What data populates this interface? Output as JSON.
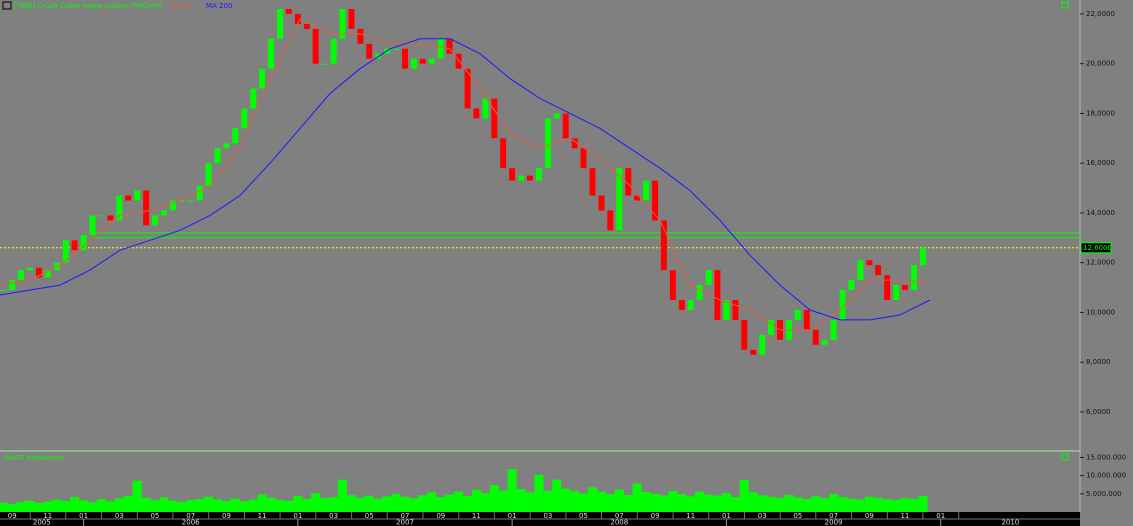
{
  "chart_data": [
    {
      "type": "candle",
      "title": "[TMG] Crush Cable Home Lesser (TMG=H)",
      "xlim": [
        2005.61,
        2010.65
      ],
      "ylim": [
        4.47,
        22.56
      ],
      "yticks": [
        {
          "value": 22,
          "label": "22,0000"
        },
        {
          "value": 20,
          "label": "20,0000"
        },
        {
          "value": 18,
          "label": "18,0000"
        },
        {
          "value": 16,
          "label": "16,0000"
        },
        {
          "value": 14,
          "label": "14,0000"
        },
        {
          "value": 12,
          "label": "12,0000"
        },
        {
          "value": 10,
          "label": "10,0000"
        },
        {
          "value": 8,
          "label": "8,0000"
        },
        {
          "value": 6,
          "label": "6,0000"
        }
      ],
      "hlines": [
        {
          "value": 13.2,
          "from": 2006.04,
          "color": "#00ff00"
        },
        {
          "value": 13.0,
          "from": 2006.04,
          "color": "#00ff00"
        }
      ],
      "price_line": {
        "value": 12.6,
        "label": "12,6000",
        "color": "#ffff00"
      },
      "series": [
        {
          "up_color": "#00ff00",
          "down_color": "#ff0000",
          "x": [
            2005.625,
            2005.667,
            2005.708,
            2005.75,
            2005.792,
            2005.833,
            2005.875,
            2005.917,
            2005.958,
            2006.0,
            2006.042,
            2006.083,
            2006.125,
            2006.167,
            2006.208,
            2006.25,
            2006.292,
            2006.333,
            2006.375,
            2006.417,
            2006.458,
            2006.5,
            2006.542,
            2006.583,
            2006.625,
            2006.667,
            2006.708,
            2006.75,
            2006.792,
            2006.833,
            2006.875,
            2006.917,
            2006.958,
            2007.0,
            2007.042,
            2007.083,
            2007.125,
            2007.167,
            2007.208,
            2007.25,
            2007.292,
            2007.333,
            2007.375,
            2007.417,
            2007.458,
            2007.5,
            2007.542,
            2007.583,
            2007.625,
            2007.667,
            2007.708,
            2007.75,
            2007.792,
            2007.833,
            2007.875,
            2007.917,
            2007.958,
            2008.0,
            2008.042,
            2008.083,
            2008.125,
            2008.167,
            2008.208,
            2008.25,
            2008.292,
            2008.333,
            2008.375,
            2008.417,
            2008.458,
            2008.5,
            2008.542,
            2008.583,
            2008.625,
            2008.667,
            2008.708,
            2008.75,
            2008.792,
            2008.833,
            2008.875,
            2008.917,
            2008.958,
            2009.0,
            2009.042,
            2009.083,
            2009.125,
            2009.167,
            2009.208,
            2009.25,
            2009.292,
            2009.333,
            2009.375,
            2009.417,
            2009.458,
            2009.5,
            2009.542,
            2009.583,
            2009.625,
            2009.667,
            2009.708,
            2009.75,
            2009.792,
            2009.833,
            2009.875,
            2009.917
          ],
          "values": [
            10.9,
            11.3,
            11.7,
            11.8,
            11.4,
            11.7,
            12.0,
            12.9,
            12.5,
            13.1,
            13.9,
            13.9,
            13.7,
            14.7,
            14.5,
            14.9,
            13.5,
            13.9,
            14.1,
            14.5,
            14.5,
            14.5,
            15.1,
            16.0,
            16.6,
            16.8,
            17.4,
            18.2,
            19.0,
            19.8,
            21.0,
            22.2,
            22.0,
            21.6,
            21.4,
            20.0,
            20.0,
            21.0,
            22.2,
            21.4,
            20.8,
            20.2,
            20.4,
            20.6,
            20.6,
            19.8,
            20.2,
            20.0,
            20.2,
            21.0,
            20.4,
            19.8,
            18.2,
            17.8,
            18.6,
            17.0,
            15.8,
            15.3,
            15.5,
            15.3,
            15.8,
            17.8,
            18.0,
            17.0,
            16.6,
            15.8,
            14.7,
            14.1,
            13.3,
            15.8,
            14.7,
            14.5,
            15.3,
            13.7,
            11.7,
            10.5,
            10.1,
            10.5,
            11.1,
            11.7,
            9.7,
            10.5,
            9.7,
            8.5,
            8.3,
            9.1,
            9.7,
            8.9,
            9.7,
            10.1,
            9.3,
            8.7,
            8.9,
            9.7,
            10.9,
            11.3,
            12.1,
            11.9,
            11.5,
            10.5,
            11.1,
            10.9,
            11.9,
            12.6
          ]
        },
        {
          "name": "MA 50",
          "color": "#e06040",
          "x": [
            2005.61,
            2005.75,
            2005.89,
            2006.03,
            2006.17,
            2006.31,
            2006.45,
            2006.59,
            2006.73,
            2006.87,
            2007.01,
            2007.15,
            2007.29,
            2007.43,
            2007.57,
            2007.71,
            2007.85,
            2007.99,
            2008.13,
            2008.27,
            2008.41,
            2008.55,
            2008.69,
            2008.83,
            2008.97,
            2009.11,
            2009.25,
            2009.39,
            2009.53,
            2009.67,
            2009.81,
            2009.95
          ],
          "values": [
            11.1,
            11.3,
            11.9,
            12.9,
            13.9,
            14.1,
            14.5,
            15.1,
            16.6,
            19.4,
            21.8,
            21.2,
            21.2,
            20.8,
            20.8,
            20.6,
            19.0,
            17.2,
            16.6,
            17.0,
            16.2,
            15.1,
            13.7,
            11.1,
            10.5,
            10.1,
            9.3,
            9.3,
            10.1,
            11.3,
            11.3,
            11.2
          ]
        },
        {
          "name": "MA 200",
          "color": "#1a1aff",
          "x": [
            2005.61,
            2005.75,
            2005.89,
            2006.03,
            2006.17,
            2006.31,
            2006.45,
            2006.59,
            2006.73,
            2006.87,
            2007.01,
            2007.15,
            2007.29,
            2007.43,
            2007.57,
            2007.71,
            2007.85,
            2007.99,
            2008.13,
            2008.27,
            2008.41,
            2008.55,
            2008.69,
            2008.83,
            2008.97,
            2009.11,
            2009.25,
            2009.39,
            2009.53,
            2009.67,
            2009.81,
            2009.95
          ],
          "values": [
            10.7,
            10.9,
            11.1,
            11.7,
            12.5,
            12.9,
            13.3,
            13.9,
            14.7,
            16.0,
            17.4,
            18.8,
            19.8,
            20.6,
            21.0,
            21.0,
            20.4,
            19.4,
            18.6,
            18.0,
            17.4,
            16.6,
            15.8,
            14.9,
            13.7,
            12.3,
            11.1,
            10.1,
            9.7,
            9.7,
            9.9,
            10.5
          ]
        }
      ]
    },
    {
      "type": "bar",
      "title": "SHATI extVolume",
      "color": "#00ff00",
      "xlim": [
        2005.61,
        2010.65
      ],
      "ylim": [
        0,
        16500000
      ],
      "yticks": [
        {
          "value": 15000000,
          "label": "15.000.000"
        },
        {
          "value": 10000000,
          "label": "10.000.000"
        },
        {
          "value": 5000000,
          "label": "5.000.000"
        }
      ],
      "x": [
        2005.625,
        2005.667,
        2005.708,
        2005.75,
        2005.792,
        2005.833,
        2005.875,
        2005.917,
        2005.958,
        2006.0,
        2006.042,
        2006.083,
        2006.125,
        2006.167,
        2006.208,
        2006.25,
        2006.292,
        2006.333,
        2006.375,
        2006.417,
        2006.458,
        2006.5,
        2006.542,
        2006.583,
        2006.625,
        2006.667,
        2006.708,
        2006.75,
        2006.792,
        2006.833,
        2006.875,
        2006.917,
        2006.958,
        2007.0,
        2007.042,
        2007.083,
        2007.125,
        2007.167,
        2007.208,
        2007.25,
        2007.292,
        2007.333,
        2007.375,
        2007.417,
        2007.458,
        2007.5,
        2007.542,
        2007.583,
        2007.625,
        2007.667,
        2007.708,
        2007.75,
        2007.792,
        2007.833,
        2007.875,
        2007.917,
        2007.958,
        2008.0,
        2008.042,
        2008.083,
        2008.125,
        2008.167,
        2008.208,
        2008.25,
        2008.292,
        2008.333,
        2008.375,
        2008.417,
        2008.458,
        2008.5,
        2008.542,
        2008.583,
        2008.625,
        2008.667,
        2008.708,
        2008.75,
        2008.792,
        2008.833,
        2008.875,
        2008.917,
        2008.958,
        2009.0,
        2009.042,
        2009.083,
        2009.125,
        2009.167,
        2009.208,
        2009.25,
        2009.292,
        2009.333,
        2009.375,
        2009.417,
        2009.458,
        2009.5,
        2009.542,
        2009.583,
        2009.625,
        2009.667,
        2009.708,
        2009.75,
        2009.792,
        2009.833,
        2009.875,
        2009.917
      ],
      "values": [
        2600000,
        2200000,
        2800000,
        3100000,
        2500000,
        2900000,
        3400000,
        3000000,
        4100000,
        3200000,
        2700000,
        3500000,
        2900000,
        3800000,
        4500000,
        8600000,
        3900000,
        3200000,
        4000000,
        3100000,
        2800000,
        3300000,
        3600000,
        4200000,
        3500000,
        3000000,
        3700000,
        2900000,
        3400000,
        4800000,
        3900000,
        3300000,
        3100000,
        4400000,
        3600000,
        5200000,
        3800000,
        4100000,
        8900000,
        4600000,
        3900000,
        4500000,
        3700000,
        4300000,
        5000000,
        4200000,
        3800000,
        4600000,
        5400000,
        4100000,
        4800000,
        5600000,
        4400000,
        6100000,
        5200000,
        7400000,
        5900000,
        11800000,
        6300000,
        5400000,
        10200000,
        5800000,
        8900000,
        6400000,
        5700000,
        5100000,
        6800000,
        5600000,
        4900000,
        6200000,
        4700000,
        7800000,
        5500000,
        5000000,
        4600000,
        5800000,
        4900000,
        4300000,
        5600000,
        4800000,
        4500000,
        5200000,
        4100000,
        8800000,
        5400000,
        4600000,
        4200000,
        3900000,
        4700000,
        4000000,
        3600000,
        4300000,
        3800000,
        4900000,
        4100000,
        3700000,
        3400000,
        4200000,
        3900000,
        3500000,
        3300000,
        3800000,
        3600000,
        4400000
      ],
      "xticks": [
        {
          "value": 2005.667,
          "label": "09"
        },
        {
          "value": 2005.833,
          "label": "11"
        },
        {
          "value": 2006,
          "label": "01"
        },
        {
          "value": 2006.167,
          "label": "03"
        },
        {
          "value": 2006.333,
          "label": "05"
        },
        {
          "value": 2006.5,
          "label": "07"
        },
        {
          "value": 2006.667,
          "label": "09"
        },
        {
          "value": 2006.833,
          "label": "11"
        },
        {
          "value": 2007,
          "label": "01"
        },
        {
          "value": 2007.167,
          "label": "03"
        },
        {
          "value": 2007.333,
          "label": "05"
        },
        {
          "value": 2007.5,
          "label": "07"
        },
        {
          "value": 2007.667,
          "label": "09"
        },
        {
          "value": 2007.833,
          "label": "11"
        },
        {
          "value": 2008,
          "label": "01"
        },
        {
          "value": 2008.167,
          "label": "03"
        },
        {
          "value": 2008.333,
          "label": "05"
        },
        {
          "value": 2008.5,
          "label": "07"
        },
        {
          "value": 2008.667,
          "label": "09"
        },
        {
          "value": 2008.833,
          "label": "11"
        },
        {
          "value": 2009,
          "label": "01"
        },
        {
          "value": 2009.167,
          "label": "03"
        },
        {
          "value": 2009.333,
          "label": "05"
        },
        {
          "value": 2009.5,
          "label": "07"
        },
        {
          "value": 2009.667,
          "label": "09"
        },
        {
          "value": 2009.833,
          "label": "11"
        },
        {
          "value": 2010,
          "label": "01"
        }
      ],
      "year_ticks": [
        2005,
        2006,
        2007,
        2008,
        2009,
        2010
      ]
    }
  ]
}
